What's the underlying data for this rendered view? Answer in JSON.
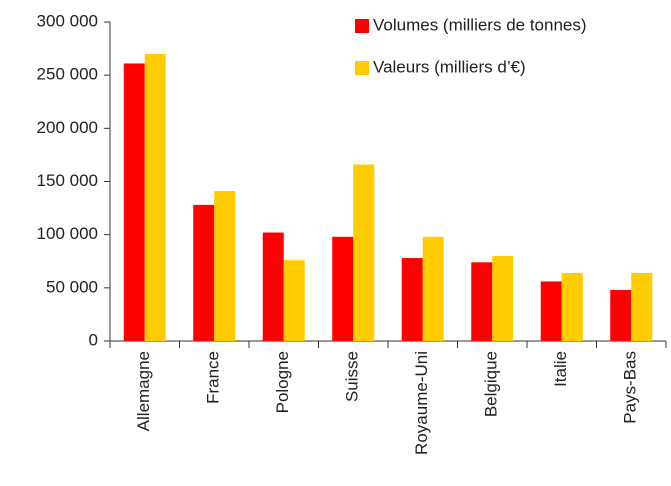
{
  "chart_data": {
    "type": "bar",
    "categories": [
      "Allemagne",
      "France",
      "Pologne",
      "Suisse",
      "Royaume-Uni",
      "Belgique",
      "Italie",
      "Pays-Bas"
    ],
    "series": [
      {
        "name": "Volumes (milliers de tonnes)",
        "color": "#ff0000",
        "values": [
          261000,
          128000,
          102000,
          98000,
          78000,
          74000,
          56000,
          48000
        ]
      },
      {
        "name": "Valeurs (milliers d’€)",
        "color": "#ffcc00",
        "values": [
          270000,
          141000,
          76000,
          166000,
          98000,
          80000,
          64000,
          64000
        ]
      }
    ],
    "ylim": [
      0,
      300000
    ],
    "yticks": [
      0,
      {
        "value": 50000,
        "label": "50 000"
      },
      {
        "value": 100000,
        "label": "100 000"
      },
      {
        "value": 150000,
        "label": "150 000"
      },
      {
        "value": 200000,
        "label": "200 000"
      },
      {
        "value": 250000,
        "label": "250 000"
      },
      {
        "value": 300000,
        "label": "300 000"
      }
    ],
    "legend": "upper right"
  }
}
